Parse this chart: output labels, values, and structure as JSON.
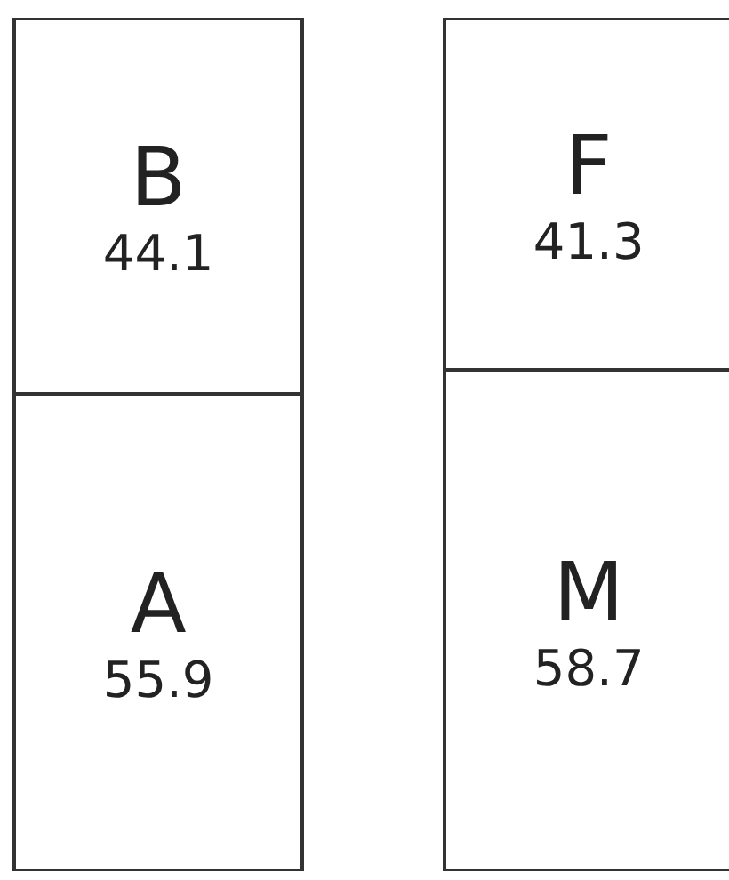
{
  "chart_data": {
    "type": "bar",
    "stacked": true,
    "categories": [
      null,
      null
    ],
    "series": [
      {
        "color": "#ffffff",
        "values": [
          55.9,
          58.7
        ],
        "value_labels": [
          "A\n55.9",
          "M\n58.7"
        ]
      },
      {
        "color": "#ffffff",
        "values": [
          44.1,
          41.3
        ],
        "value_labels": [
          "B\n44.1",
          "F\n41.3"
        ]
      }
    ]
  }
}
